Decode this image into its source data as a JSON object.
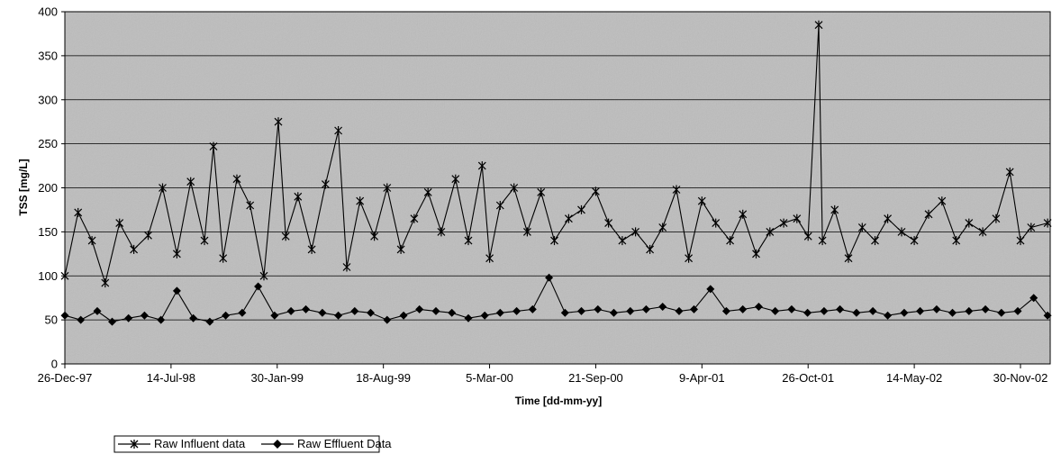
{
  "chart_data": {
    "type": "line",
    "title": "",
    "xlabel": "Time [dd-mm-yy]",
    "ylabel": "TSS [mg/L]",
    "ylim": [
      0,
      400
    ],
    "yticks": [
      0,
      50,
      100,
      150,
      200,
      250,
      300,
      350,
      400
    ],
    "xlim": [
      "1997-12-26",
      "2003-01-25"
    ],
    "xtick_labels": [
      "26-Dec-97",
      "14-Jul-98",
      "30-Jan-99",
      "18-Aug-99",
      "5-Mar-00",
      "21-Sep-00",
      "9-Apr-01",
      "26-Oct-01",
      "14-May-02",
      "30-Nov-02"
    ],
    "grid": "horizontal",
    "legend": "bottom-left",
    "colors": {
      "plot_background": "#bdbdbd",
      "series": "#000000",
      "grid": "#000000"
    },
    "series": [
      {
        "name": "Raw Influent data",
        "marker": "asterisk",
        "x": [
          "1997-12-26",
          "1998-01-20",
          "1998-02-15",
          "1998-03-12",
          "1998-04-08",
          "1998-05-05",
          "1998-06-01",
          "1998-06-28",
          "1998-07-25",
          "1998-08-20",
          "1998-09-15",
          "1998-10-02",
          "1998-10-20",
          "1998-11-15",
          "1998-12-10",
          "1999-01-05",
          "1999-02-01",
          "1999-02-15",
          "1999-03-10",
          "1999-04-05",
          "1999-05-01",
          "1999-05-25",
          "1999-06-10",
          "1999-07-05",
          "1999-08-01",
          "1999-08-25",
          "1999-09-20",
          "1999-10-15",
          "1999-11-10",
          "1999-12-05",
          "2000-01-01",
          "2000-01-25",
          "2000-02-20",
          "2000-03-05",
          "2000-03-25",
          "2000-04-20",
          "2000-05-15",
          "2000-06-10",
          "2000-07-05",
          "2000-08-01",
          "2000-08-25",
          "2000-09-21",
          "2000-10-15",
          "2000-11-10",
          "2000-12-05",
          "2001-01-01",
          "2001-01-25",
          "2001-02-20",
          "2001-03-15",
          "2001-04-09",
          "2001-05-05",
          "2001-06-01",
          "2001-06-25",
          "2001-07-20",
          "2001-08-15",
          "2001-09-10",
          "2001-10-05",
          "2001-10-26",
          "2001-11-15",
          "2001-11-22",
          "2001-12-15",
          "2002-01-10",
          "2002-02-05",
          "2002-03-01",
          "2002-03-25",
          "2002-04-20",
          "2002-05-14",
          "2002-06-10",
          "2002-07-05",
          "2002-08-01",
          "2002-08-25",
          "2002-09-20",
          "2002-10-15",
          "2002-11-10",
          "2002-11-30",
          "2002-12-20",
          "2003-01-20"
        ],
        "values": [
          100,
          172,
          140,
          92,
          160,
          130,
          146,
          200,
          125,
          207,
          140,
          247,
          120,
          210,
          180,
          100,
          275,
          145,
          190,
          130,
          204,
          265,
          110,
          185,
          145,
          200,
          130,
          165,
          195,
          150,
          210,
          140,
          225,
          120,
          180,
          200,
          150,
          195,
          140,
          165,
          175,
          196,
          160,
          140,
          150,
          130,
          155,
          198,
          120,
          185,
          160,
          140,
          170,
          125,
          150,
          160,
          165,
          145,
          385,
          140,
          175,
          120,
          155,
          140,
          165,
          150,
          140,
          170,
          185,
          140,
          160,
          150,
          165,
          218,
          140,
          155,
          160
        ]
      },
      {
        "name": "Raw Effluent Data",
        "marker": "diamond",
        "x": [
          "1997-12-26",
          "1998-01-25",
          "1998-02-25",
          "1998-03-25",
          "1998-04-25",
          "1998-05-25",
          "1998-06-25",
          "1998-07-25",
          "1998-08-25",
          "1998-09-25",
          "1998-10-25",
          "1998-11-25",
          "1998-12-25",
          "1999-01-25",
          "1999-02-25",
          "1999-03-25",
          "1999-04-25",
          "1999-05-25",
          "1999-06-25",
          "1999-07-25",
          "1999-08-25",
          "1999-09-25",
          "1999-10-25",
          "1999-11-25",
          "1999-12-25",
          "2000-01-25",
          "2000-02-25",
          "2000-03-25",
          "2000-04-25",
          "2000-05-25",
          "2000-06-25",
          "2000-07-25",
          "2000-08-25",
          "2000-09-25",
          "2000-10-25",
          "2000-11-25",
          "2000-12-25",
          "2001-01-25",
          "2001-02-25",
          "2001-03-25",
          "2001-04-25",
          "2001-05-25",
          "2001-06-25",
          "2001-07-25",
          "2001-08-25",
          "2001-09-25",
          "2001-10-25",
          "2001-11-25",
          "2001-12-25",
          "2002-01-25",
          "2002-02-25",
          "2002-03-25",
          "2002-04-25",
          "2002-05-25",
          "2002-06-25",
          "2002-07-25",
          "2002-08-25",
          "2002-09-25",
          "2002-10-25",
          "2002-11-25",
          "2002-12-25",
          "2003-01-20"
        ],
        "values": [
          55,
          50,
          60,
          48,
          52,
          55,
          50,
          83,
          52,
          48,
          55,
          58,
          88,
          55,
          60,
          62,
          58,
          55,
          60,
          58,
          50,
          55,
          62,
          60,
          58,
          52,
          55,
          58,
          60,
          62,
          98,
          58,
          60,
          62,
          58,
          60,
          62,
          65,
          60,
          62,
          85,
          60,
          62,
          65,
          60,
          62,
          58,
          60,
          62,
          58,
          60,
          55,
          58,
          60,
          62,
          58,
          60,
          62,
          58,
          60,
          75,
          55
        ]
      }
    ]
  }
}
